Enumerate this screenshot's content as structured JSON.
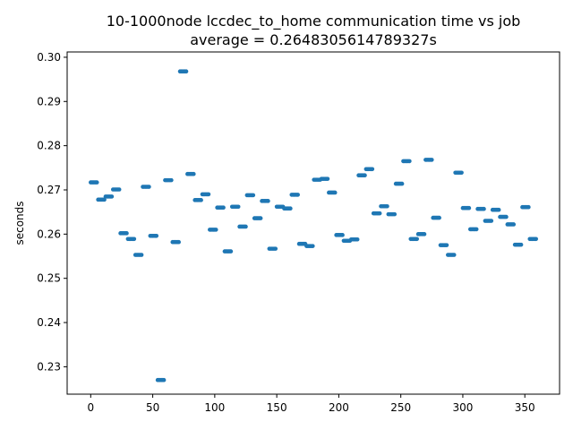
{
  "chart_data": {
    "type": "scatter",
    "title": "10-1000node lccdec_to_home communication time vs job",
    "subtitle": "average = 0.2648305614789327s",
    "xlabel": "",
    "ylabel": "seconds",
    "xlim": [
      -19,
      378
    ],
    "ylim": [
      0.2238,
      0.3012
    ],
    "xticks": [
      0,
      50,
      100,
      150,
      200,
      250,
      300,
      350
    ],
    "yticks": [
      0.23,
      0.24,
      0.25,
      0.26,
      0.27,
      0.28,
      0.29,
      0.3
    ],
    "ytick_labels": [
      "0.23",
      "0.24",
      "0.25",
      "0.26",
      "0.27",
      "0.28",
      "0.29",
      "0.30"
    ],
    "marker_color": "#1f77b4",
    "grid": false,
    "legend": "none",
    "series": [
      {
        "x": [
          0,
          1,
          2,
          3,
          4,
          5,
          6,
          7,
          8,
          9,
          10,
          11,
          12,
          13,
          14,
          15,
          16,
          17,
          18,
          19,
          20,
          21,
          22,
          23,
          24,
          25,
          26,
          27,
          28,
          29,
          30,
          31,
          32,
          33,
          34,
          35,
          36,
          37,
          38,
          39,
          40,
          41,
          42,
          43,
          44,
          45,
          46,
          47,
          48,
          49,
          50,
          51,
          52,
          53,
          54,
          55,
          56,
          57,
          58,
          59,
          60,
          61,
          62,
          63,
          64,
          65,
          66,
          67,
          68,
          69,
          70,
          71,
          72,
          73,
          74,
          75,
          76,
          77,
          78,
          79,
          80,
          81,
          82,
          83,
          84,
          85,
          86,
          87,
          88,
          89,
          90,
          91,
          92,
          93,
          94,
          95,
          96,
          97,
          98,
          99,
          100,
          101,
          102,
          103,
          104,
          105,
          106,
          107,
          108,
          109,
          110,
          111,
          112,
          113,
          114,
          115,
          116,
          117,
          118,
          119,
          120,
          121,
          122,
          123,
          124,
          125,
          126,
          127,
          128,
          129,
          130,
          131,
          132,
          133,
          134,
          135,
          136,
          137,
          138,
          139,
          140,
          141,
          142,
          143,
          144,
          145,
          146,
          147,
          148,
          149,
          150,
          151,
          152,
          153,
          154,
          155,
          156,
          157,
          158,
          159,
          160,
          161,
          162,
          163,
          164,
          165,
          166,
          167,
          168,
          169,
          170,
          171,
          172,
          173,
          174,
          175,
          176,
          177,
          178,
          179,
          180,
          181,
          182,
          183,
          184,
          185,
          186,
          187,
          188,
          189,
          190,
          191,
          192,
          193,
          194,
          195,
          196,
          197,
          198,
          199,
          200,
          201,
          202,
          203,
          204,
          205,
          206,
          207,
          208,
          209,
          210,
          211,
          212,
          213,
          214,
          215,
          216,
          217,
          218,
          219,
          220,
          221,
          222,
          223,
          224,
          225,
          226,
          227,
          228,
          229,
          230,
          231,
          232,
          233,
          234,
          235,
          236,
          237,
          238,
          239,
          240,
          241,
          242,
          243,
          244,
          245,
          246,
          247,
          248,
          249,
          250,
          251,
          252,
          253,
          254,
          255,
          256,
          257,
          258,
          259,
          260,
          261,
          262,
          263,
          264,
          265,
          266,
          267,
          268,
          269,
          270,
          271,
          272,
          273,
          274,
          275,
          276,
          277,
          278,
          279,
          280,
          281,
          282,
          283,
          284,
          285,
          286,
          287,
          288,
          289,
          290,
          291,
          292,
          293,
          294,
          295,
          296,
          297,
          298,
          299,
          300,
          301,
          302,
          303,
          304,
          305,
          306,
          307,
          308,
          309,
          310,
          311,
          312,
          313,
          314,
          315,
          316,
          317,
          318,
          319,
          320,
          321,
          322,
          323,
          324,
          325,
          326,
          327,
          328,
          329,
          330,
          331,
          332,
          333,
          334,
          335,
          336,
          337,
          338,
          339,
          340,
          341,
          342,
          343,
          344,
          345,
          346,
          347,
          348,
          349,
          350,
          351,
          352,
          353,
          354,
          355,
          356,
          357,
          358,
          359
        ],
        "y": [
          0.2717,
          0.2717,
          0.2717,
          0.2717,
          0.2717,
          0.2717,
          0.2678,
          0.2678,
          0.2678,
          0.2678,
          0.2678,
          0.2678,
          0.2685,
          0.2685,
          0.2685,
          0.2685,
          0.2685,
          0.2685,
          0.2701,
          0.2701,
          0.2701,
          0.2701,
          0.2701,
          0.2701,
          0.2602,
          0.2602,
          0.2602,
          0.2602,
          0.2602,
          0.2602,
          0.2589,
          0.2589,
          0.2589,
          0.2589,
          0.2589,
          0.2589,
          0.2553,
          0.2553,
          0.2553,
          0.2553,
          0.2553,
          0.2553,
          0.2707,
          0.2707,
          0.2707,
          0.2707,
          0.2707,
          0.2707,
          0.2596,
          0.2596,
          0.2596,
          0.2596,
          0.2596,
          0.2596,
          0.227,
          0.227,
          0.227,
          0.227,
          0.227,
          0.227,
          0.2722,
          0.2722,
          0.2722,
          0.2722,
          0.2722,
          0.2722,
          0.2582,
          0.2582,
          0.2582,
          0.2582,
          0.2582,
          0.2582,
          0.2968,
          0.2968,
          0.2968,
          0.2968,
          0.2968,
          0.2968,
          0.2736,
          0.2736,
          0.2736,
          0.2736,
          0.2736,
          0.2736,
          0.2677,
          0.2677,
          0.2677,
          0.2677,
          0.2677,
          0.2677,
          0.269,
          0.269,
          0.269,
          0.269,
          0.269,
          0.269,
          0.261,
          0.261,
          0.261,
          0.261,
          0.261,
          0.261,
          0.266,
          0.266,
          0.266,
          0.266,
          0.266,
          0.266,
          0.2561,
          0.2561,
          0.2561,
          0.2561,
          0.2561,
          0.2561,
          0.2662,
          0.2662,
          0.2662,
          0.2662,
          0.2662,
          0.2662,
          0.2617,
          0.2617,
          0.2617,
          0.2617,
          0.2617,
          0.2617,
          0.2688,
          0.2688,
          0.2688,
          0.2688,
          0.2688,
          0.2688,
          0.2636,
          0.2636,
          0.2636,
          0.2636,
          0.2636,
          0.2636,
          0.2675,
          0.2675,
          0.2675,
          0.2675,
          0.2675,
          0.2675,
          0.2567,
          0.2567,
          0.2567,
          0.2567,
          0.2567,
          0.2567,
          0.2662,
          0.2662,
          0.2662,
          0.2662,
          0.2662,
          0.2662,
          0.2658,
          0.2658,
          0.2658,
          0.2658,
          0.2658,
          0.2658,
          0.2689,
          0.2689,
          0.2689,
          0.2689,
          0.2689,
          0.2689,
          0.2578,
          0.2578,
          0.2578,
          0.2578,
          0.2578,
          0.2578,
          0.2573,
          0.2573,
          0.2573,
          0.2573,
          0.2573,
          0.2573,
          0.2723,
          0.2723,
          0.2723,
          0.2723,
          0.2723,
          0.2723,
          0.2725,
          0.2725,
          0.2725,
          0.2725,
          0.2725,
          0.2725,
          0.2694,
          0.2694,
          0.2694,
          0.2694,
          0.2694,
          0.2694,
          0.2598,
          0.2598,
          0.2598,
          0.2598,
          0.2598,
          0.2598,
          0.2585,
          0.2585,
          0.2585,
          0.2585,
          0.2585,
          0.2585,
          0.2588,
          0.2588,
          0.2588,
          0.2588,
          0.2588,
          0.2588,
          0.2733,
          0.2733,
          0.2733,
          0.2733,
          0.2733,
          0.2733,
          0.2747,
          0.2747,
          0.2747,
          0.2747,
          0.2747,
          0.2747,
          0.2647,
          0.2647,
          0.2647,
          0.2647,
          0.2647,
          0.2647,
          0.2663,
          0.2663,
          0.2663,
          0.2663,
          0.2663,
          0.2663,
          0.2645,
          0.2645,
          0.2645,
          0.2645,
          0.2645,
          0.2645,
          0.2714,
          0.2714,
          0.2714,
          0.2714,
          0.2714,
          0.2714,
          0.2765,
          0.2765,
          0.2765,
          0.2765,
          0.2765,
          0.2765,
          0.2589,
          0.2589,
          0.2589,
          0.2589,
          0.2589,
          0.2589,
          0.26,
          0.26,
          0.26,
          0.26,
          0.26,
          0.26,
          0.2768,
          0.2768,
          0.2768,
          0.2768,
          0.2768,
          0.2768,
          0.2637,
          0.2637,
          0.2637,
          0.2637,
          0.2637,
          0.2637,
          0.2575,
          0.2575,
          0.2575,
          0.2575,
          0.2575,
          0.2575,
          0.2553,
          0.2553,
          0.2553,
          0.2553,
          0.2553,
          0.2553,
          0.2739,
          0.2739,
          0.2739,
          0.2739,
          0.2739,
          0.2739,
          0.2659,
          0.2659,
          0.2659,
          0.2659,
          0.2659,
          0.2659,
          0.2611,
          0.2611,
          0.2611,
          0.2611,
          0.2611,
          0.2611,
          0.2657,
          0.2657,
          0.2657,
          0.2657,
          0.2657,
          0.2657,
          0.263,
          0.263,
          0.263,
          0.263,
          0.263,
          0.263,
          0.2655,
          0.2655,
          0.2655,
          0.2655,
          0.2655,
          0.2655,
          0.2639,
          0.2639,
          0.2639,
          0.2639,
          0.2639,
          0.2639,
          0.2622,
          0.2622,
          0.2622,
          0.2622,
          0.2622,
          0.2622,
          0.2576,
          0.2576,
          0.2576,
          0.2576,
          0.2576,
          0.2576,
          0.2661,
          0.2661,
          0.2661,
          0.2661,
          0.2661,
          0.2661,
          0.2589,
          0.2589,
          0.2589,
          0.2589,
          0.2589,
          0.2589
        ]
      }
    ]
  }
}
